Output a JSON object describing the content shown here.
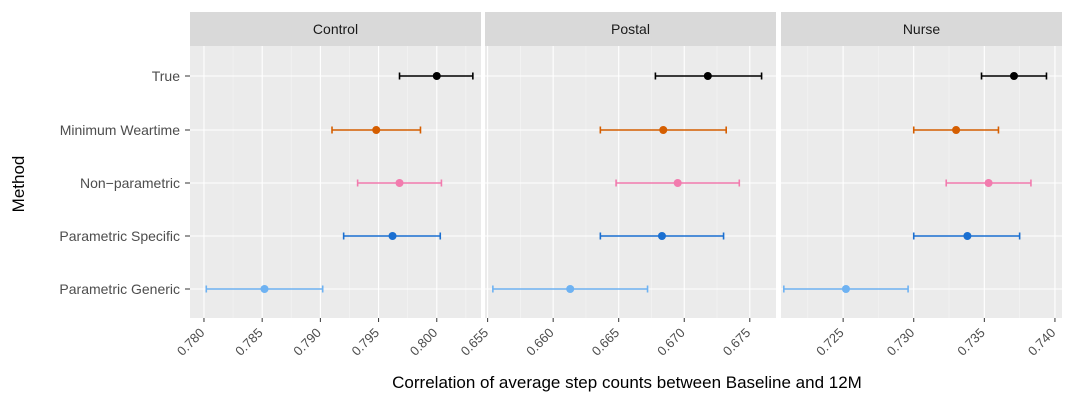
{
  "chart_data": {
    "type": "errorbar",
    "xlabel": "Correlation of average step counts between Baseline and 12M",
    "ylabel": "Method",
    "categories": [
      "True",
      "Minimum Weartime",
      "Non−parametric",
      "Parametric Specific",
      "Parametric Generic"
    ],
    "colors": {
      "True": "#000000",
      "Minimum Weartime": "#D55E00",
      "Non−parametric": "#F27BAE",
      "Parametric Specific": "#1A6FD1",
      "Parametric Generic": "#6EB2F2"
    },
    "grid": true,
    "panels": [
      {
        "name": "Control",
        "xlim": [
          0.7788,
          0.8038
        ],
        "ticks": [
          0.78,
          0.785,
          0.79,
          0.795,
          0.8
        ],
        "tick_labels": [
          "0.780",
          "0.785",
          "0.790",
          "0.795",
          "0.800"
        ],
        "points": [
          {
            "method": "True",
            "estimate": 0.8,
            "lower": 0.7968,
            "upper": 0.8031
          },
          {
            "method": "Minimum Weartime",
            "estimate": 0.7948,
            "lower": 0.791,
            "upper": 0.7986
          },
          {
            "method": "Non−parametric",
            "estimate": 0.7968,
            "lower": 0.7932,
            "upper": 0.8004
          },
          {
            "method": "Parametric Specific",
            "estimate": 0.7962,
            "lower": 0.792,
            "upper": 0.8003
          },
          {
            "method": "Parametric Generic",
            "estimate": 0.7852,
            "lower": 0.7802,
            "upper": 0.7902
          }
        ]
      },
      {
        "name": "Postal",
        "xlim": [
          0.6548,
          0.677
        ],
        "ticks": [
          0.655,
          0.66,
          0.665,
          0.67,
          0.675
        ],
        "tick_labels": [
          "0.655",
          "0.660",
          "0.665",
          "0.670",
          "0.675"
        ],
        "points": [
          {
            "method": "True",
            "estimate": 0.6718,
            "lower": 0.6678,
            "upper": 0.6759
          },
          {
            "method": "Minimum Weartime",
            "estimate": 0.6684,
            "lower": 0.6636,
            "upper": 0.6732
          },
          {
            "method": "Non−parametric",
            "estimate": 0.6695,
            "lower": 0.6648,
            "upper": 0.6742
          },
          {
            "method": "Parametric Specific",
            "estimate": 0.6683,
            "lower": 0.6636,
            "upper": 0.673
          },
          {
            "method": "Parametric Generic",
            "estimate": 0.6613,
            "lower": 0.6554,
            "upper": 0.6672
          }
        ]
      },
      {
        "name": "Nurse",
        "xlim": [
          0.7206,
          0.7405
        ],
        "ticks": [
          0.725,
          0.73,
          0.735,
          0.74
        ],
        "tick_labels": [
          "0.725",
          "0.730",
          "0.735",
          "0.740"
        ],
        "points": [
          {
            "method": "True",
            "estimate": 0.7371,
            "lower": 0.7348,
            "upper": 0.7394
          },
          {
            "method": "Minimum Weartime",
            "estimate": 0.733,
            "lower": 0.73,
            "upper": 0.736
          },
          {
            "method": "Non−parametric",
            "estimate": 0.7353,
            "lower": 0.7323,
            "upper": 0.7383
          },
          {
            "method": "Parametric Specific",
            "estimate": 0.7338,
            "lower": 0.73,
            "upper": 0.7375
          },
          {
            "method": "Parametric Generic",
            "estimate": 0.7252,
            "lower": 0.7208,
            "upper": 0.7296
          }
        ]
      }
    ]
  }
}
